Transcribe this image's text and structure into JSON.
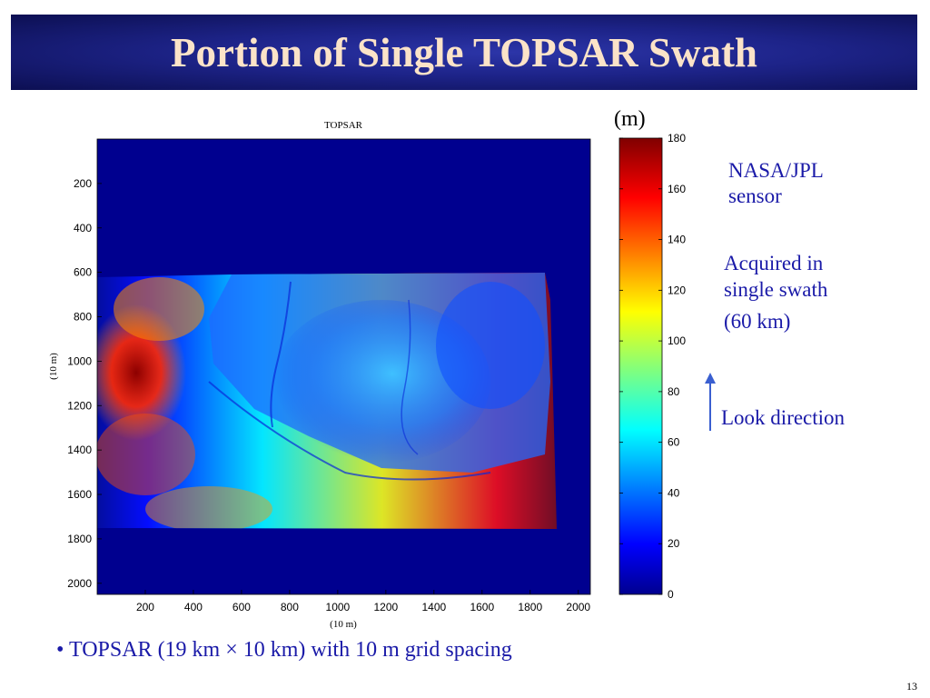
{
  "slide": {
    "title": "Portion of  Single TOPSAR Swath",
    "unit_label": "(m)",
    "notes": [
      "NASA/JPL",
      "sensor",
      "Acquired in",
      "single swath",
      "(60 km)"
    ],
    "look_direction": "Look direction",
    "bullet": "• TOPSAR (19 km × 10 km) with 10 m grid spacing",
    "page_number": "13"
  },
  "colors": {
    "title_bg": "#1d2388",
    "title_text": "#fbe3c8",
    "note_text": "#1a1aa8",
    "arrow": "#3a5fd0"
  },
  "chart_data": {
    "type": "heatmap",
    "title": "TOPSAR",
    "xlabel": "(10 m)",
    "ylabel": "(10 m)",
    "x_ticks": [
      200,
      400,
      600,
      800,
      1000,
      1200,
      1400,
      1600,
      1800,
      2000
    ],
    "y_ticks": [
      200,
      400,
      600,
      800,
      1000,
      1200,
      1400,
      1600,
      1800,
      2000
    ],
    "xlim": [
      0,
      2050
    ],
    "ylim": [
      0,
      2050
    ],
    "y_reversed": true,
    "colorbar": {
      "label": "(m)",
      "min": 0,
      "max": 180,
      "ticks": [
        0,
        20,
        40,
        60,
        80,
        100,
        120,
        140,
        160,
        180
      ],
      "colormap": "jet"
    },
    "grid": false
  }
}
